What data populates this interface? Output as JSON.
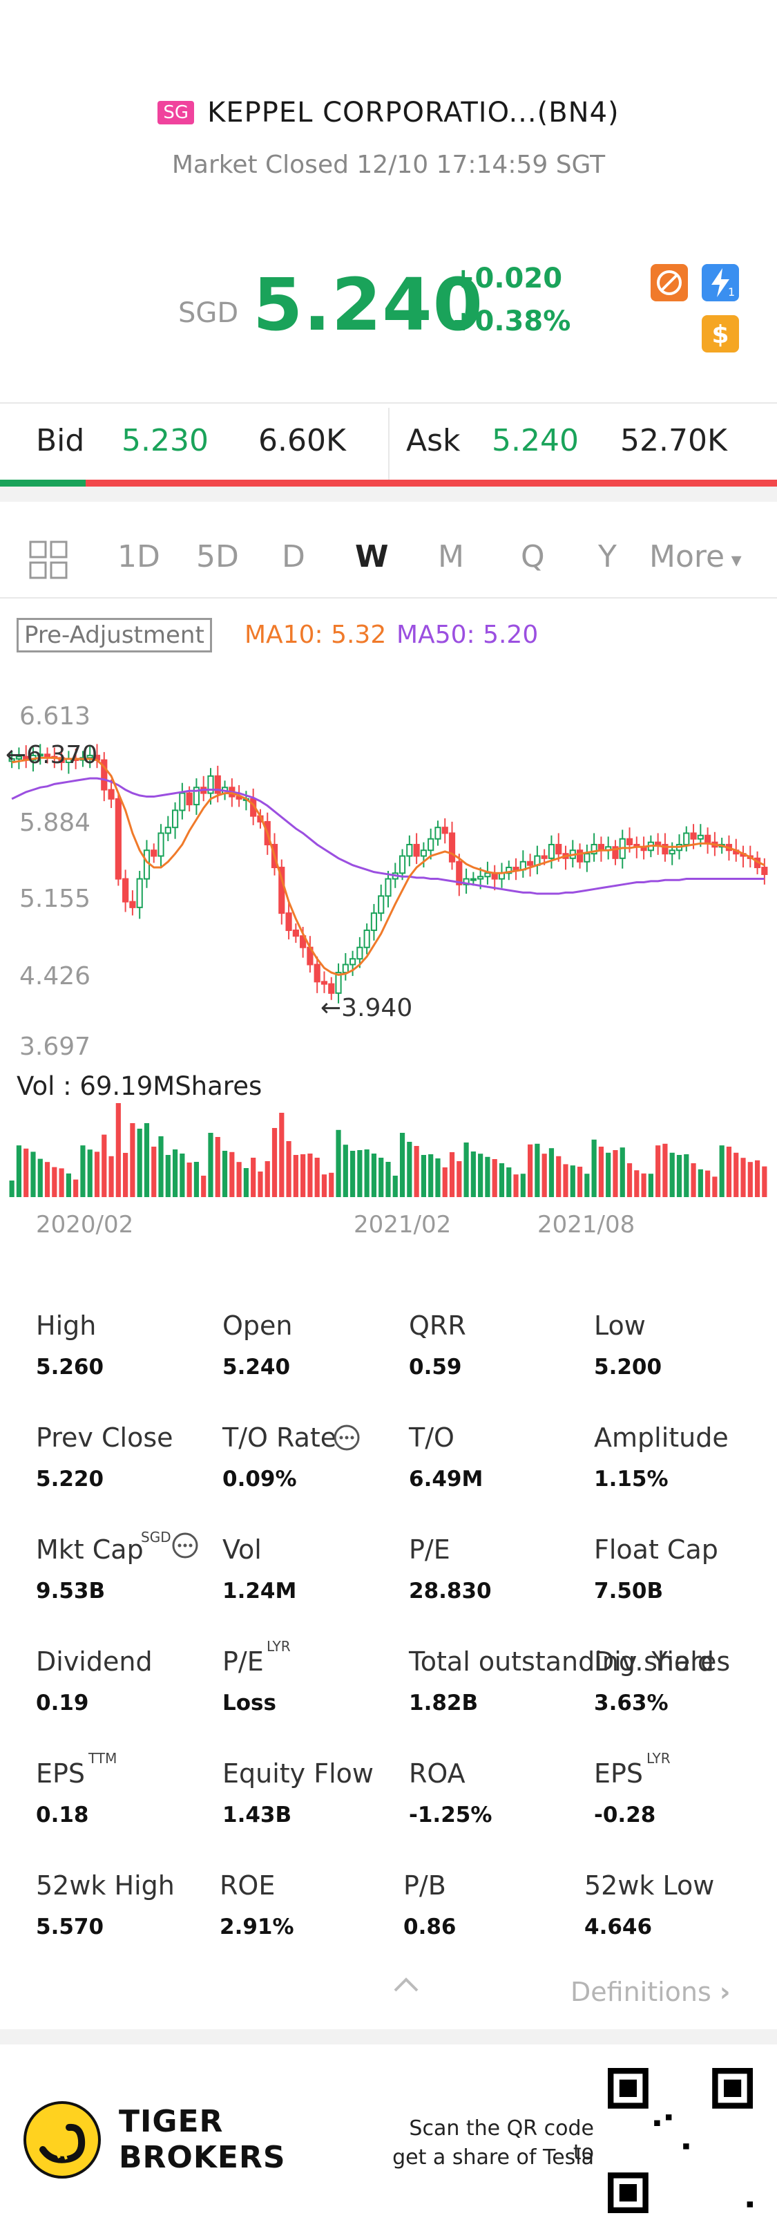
{
  "header": {
    "market_badge": "SG",
    "title": "KEPPEL CORPORATIO...(BN4)",
    "status": "Market Closed 12/10 17:14:59 SGT"
  },
  "quote": {
    "currency": "SGD",
    "price": "5.240",
    "change": "+0.020",
    "change_pct": "+0.38%",
    "color_up": "#1aa35a"
  },
  "orderbook": {
    "bid_label": "Bid",
    "bid_price": "5.230",
    "bid_size": "6.60K",
    "ask_label": "Ask",
    "ask_price": "5.240",
    "ask_size": "52.70K",
    "bid_ratio": 0.11
  },
  "tabs": {
    "grid_icon": "grid-icon",
    "items": [
      "1D",
      "5D",
      "D",
      "W",
      "M",
      "Q",
      "Y"
    ],
    "active": "W",
    "more": "More"
  },
  "indicators": {
    "adjust": "Pre-Adjustment",
    "ma10": "MA10: 5.32",
    "ma50": "MA50: 5.20",
    "ma10_color": "#f07a2a",
    "ma50_color": "#9b4fe0"
  },
  "chart_data": {
    "type": "candlestick",
    "y_ticks": [
      "6.613",
      "5.884",
      "5.155",
      "4.426",
      "3.697"
    ],
    "ylim": [
      3.697,
      6.613
    ],
    "x_ticks": [
      "2020/02",
      "2021/02",
      "2021/08"
    ],
    "high_marker": "6.370",
    "low_marker": "3.940",
    "volume_label": "Vol  : 69.19MShares",
    "close": [
      6.25,
      6.27,
      6.24,
      6.28,
      6.29,
      6.27,
      6.26,
      6.22,
      6.25,
      6.24,
      6.26,
      6.28,
      6.24,
      5.98,
      5.9,
      5.2,
      5.0,
      4.95,
      5.2,
      5.45,
      5.4,
      5.6,
      5.65,
      5.8,
      5.95,
      5.85,
      6.0,
      5.95,
      6.1,
      5.95,
      6.0,
      5.92,
      5.9,
      5.9,
      5.75,
      5.7,
      5.5,
      5.3,
      4.9,
      4.75,
      4.7,
      4.6,
      4.45,
      4.3,
      4.28,
      4.2,
      4.38,
      4.45,
      4.5,
      4.6,
      4.75,
      4.9,
      5.05,
      5.2,
      5.25,
      5.4,
      5.5,
      5.4,
      5.45,
      5.55,
      5.65,
      5.6,
      5.35,
      5.15,
      5.2,
      5.2,
      5.22,
      5.25,
      5.2,
      5.25,
      5.3,
      5.28,
      5.35,
      5.32,
      5.4,
      5.38,
      5.5,
      5.42,
      5.38,
      5.45,
      5.35,
      5.42,
      5.5,
      5.45,
      5.48,
      5.38,
      5.55,
      5.5,
      5.48,
      5.45,
      5.52,
      5.5,
      5.42,
      5.45,
      5.5,
      5.6,
      5.55,
      5.58,
      5.52,
      5.48,
      5.5,
      5.45,
      5.42,
      5.4,
      5.38,
      5.3,
      5.24
    ],
    "ma10": [
      6.22,
      6.23,
      6.24,
      6.25,
      6.26,
      6.26,
      6.26,
      6.25,
      6.25,
      6.25,
      6.25,
      6.25,
      6.24,
      6.18,
      6.1,
      5.95,
      5.8,
      5.6,
      5.45,
      5.35,
      5.3,
      5.3,
      5.35,
      5.42,
      5.5,
      5.62,
      5.72,
      5.82,
      5.9,
      5.93,
      5.95,
      5.95,
      5.93,
      5.9,
      5.85,
      5.75,
      5.6,
      5.4,
      5.2,
      5.0,
      4.85,
      4.72,
      4.6,
      4.5,
      4.42,
      4.38,
      4.36,
      4.37,
      4.4,
      4.45,
      4.52,
      4.62,
      4.72,
      4.85,
      4.98,
      5.1,
      5.22,
      5.3,
      5.35,
      5.4,
      5.42,
      5.44,
      5.42,
      5.38,
      5.33,
      5.3,
      5.28,
      5.26,
      5.25,
      5.25,
      5.26,
      5.27,
      5.28,
      5.3,
      5.32,
      5.34,
      5.36,
      5.38,
      5.4,
      5.41,
      5.42,
      5.43,
      5.44,
      5.45,
      5.45,
      5.46,
      5.47,
      5.47,
      5.48,
      5.48,
      5.49,
      5.49,
      5.48,
      5.48,
      5.48,
      5.49,
      5.5,
      5.51,
      5.51,
      5.5,
      5.49,
      5.47,
      5.45,
      5.42,
      5.39,
      5.35,
      5.32
    ],
    "ma50": [
      5.9,
      5.93,
      5.96,
      5.98,
      6.0,
      6.01,
      6.03,
      6.04,
      6.05,
      6.06,
      6.07,
      6.08,
      6.08,
      6.07,
      6.05,
      6.02,
      5.98,
      5.95,
      5.93,
      5.92,
      5.92,
      5.93,
      5.94,
      5.95,
      5.96,
      5.97,
      5.97,
      5.98,
      5.98,
      5.98,
      5.97,
      5.96,
      5.95,
      5.93,
      5.91,
      5.88,
      5.84,
      5.79,
      5.74,
      5.69,
      5.64,
      5.6,
      5.55,
      5.5,
      5.46,
      5.42,
      5.38,
      5.35,
      5.32,
      5.3,
      5.28,
      5.26,
      5.25,
      5.24,
      5.23,
      5.22,
      5.22,
      5.21,
      5.21,
      5.2,
      5.2,
      5.19,
      5.18,
      5.17,
      5.16,
      5.15,
      5.14,
      5.13,
      5.12,
      5.11,
      5.1,
      5.09,
      5.08,
      5.08,
      5.07,
      5.07,
      5.07,
      5.07,
      5.08,
      5.08,
      5.09,
      5.1,
      5.11,
      5.12,
      5.13,
      5.14,
      5.15,
      5.16,
      5.17,
      5.17,
      5.18,
      5.18,
      5.19,
      5.19,
      5.19,
      5.2,
      5.2,
      5.2,
      5.2,
      5.2,
      5.2,
      5.2,
      5.2,
      5.2,
      5.2,
      5.2,
      5.2
    ]
  },
  "stats": [
    {
      "label": "High",
      "value": "5.260"
    },
    {
      "label": "Open",
      "value": "5.240"
    },
    {
      "label": "QRR",
      "value": "0.59"
    },
    {
      "label": "Low",
      "value": "5.200"
    },
    {
      "label": "Prev Close",
      "value": "5.220"
    },
    {
      "label": "T/O Rate",
      "value": "0.09%"
    },
    {
      "label": "T/O",
      "value": "6.49M"
    },
    {
      "label": "Amplitude",
      "value": "1.15%"
    },
    {
      "label": "Mkt Cap",
      "value": "9.53B",
      "sup": "SGD"
    },
    {
      "label": "Vol",
      "value": "1.24M"
    },
    {
      "label": "P/E",
      "value": "28.830"
    },
    {
      "label": "Float Cap",
      "value": "7.50B"
    },
    {
      "label": "Dividend",
      "value": "0.19"
    },
    {
      "label": "P/E",
      "value": "Loss",
      "sup": "LYR"
    },
    {
      "label": "Total outstanding shares",
      "value": "1.82B"
    },
    {
      "label": "Div. Yield",
      "value": "3.63%"
    },
    {
      "label": "EPS",
      "value": "0.18",
      "sup": "TTM"
    },
    {
      "label": "Equity Flow",
      "value": "1.43B"
    },
    {
      "label": "ROA",
      "value": "-1.25%"
    },
    {
      "label": "EPS",
      "value": "-0.28",
      "sup": "LYR"
    },
    {
      "label": "52wk High",
      "value": "5.570"
    },
    {
      "label": "ROE",
      "value": "2.91%"
    },
    {
      "label": "P/B",
      "value": "0.86"
    },
    {
      "label": "52wk Low",
      "value": "4.646"
    }
  ],
  "definitions": "Definitions",
  "footer": {
    "brand_line1": "TIGER",
    "brand_line2": "BROKERS",
    "scan_line1": "Scan the QR code to",
    "scan_line2": "get a share of Tesla"
  }
}
